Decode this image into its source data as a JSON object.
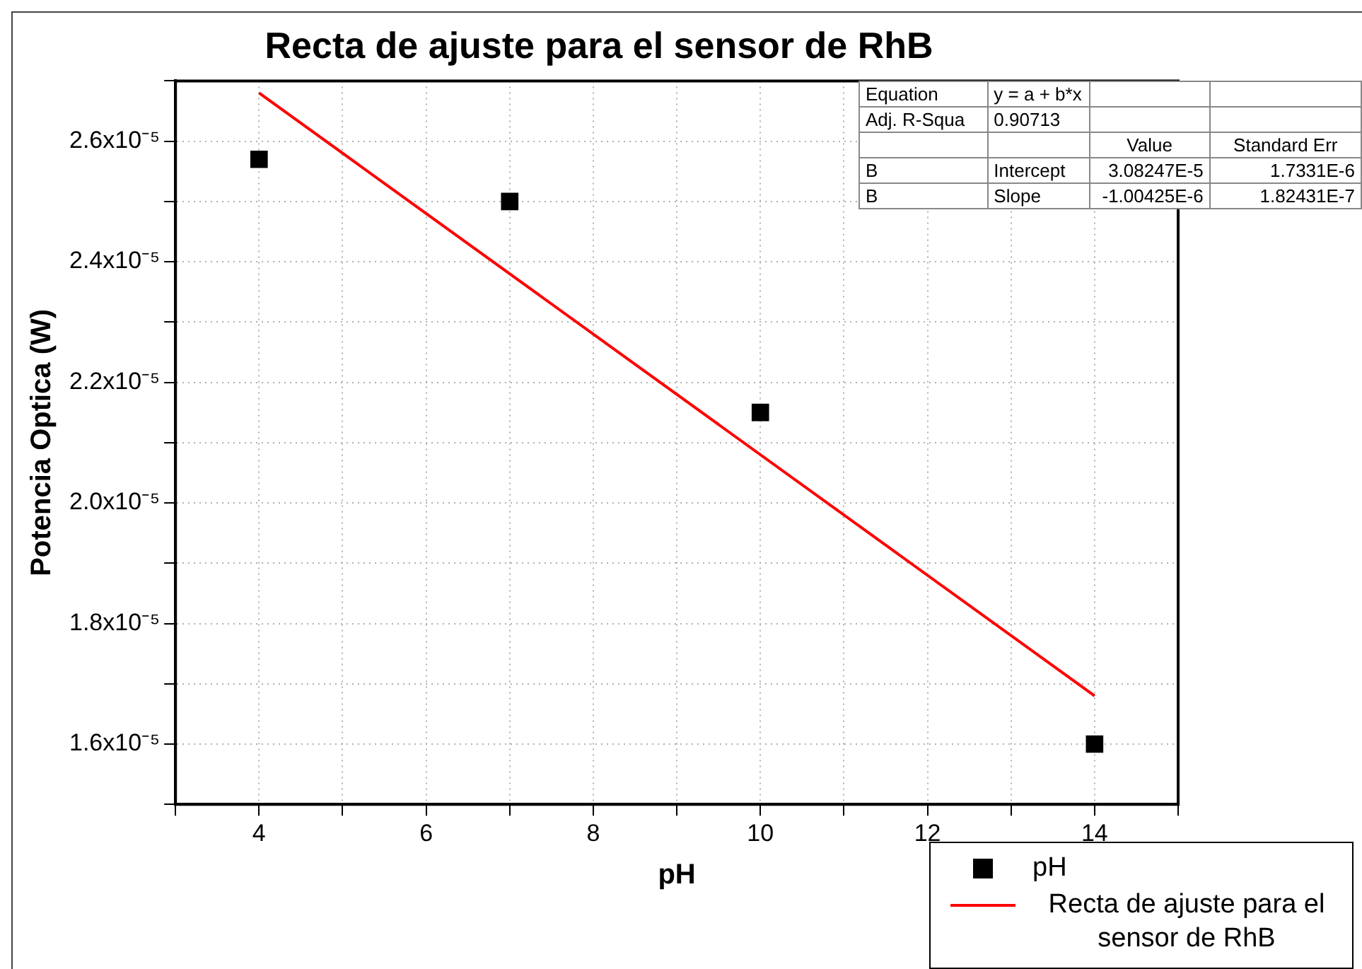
{
  "chart_data": {
    "type": "scatter",
    "title": "Recta de ajuste para el sensor de RhB",
    "xlabel": "pH",
    "ylabel": "Potencia Optica (W)",
    "xlim": [
      3,
      15
    ],
    "xticks": [
      {
        "value": 3,
        "label": null
      },
      4,
      {
        "value": 5,
        "label": null
      },
      6,
      {
        "value": 7,
        "label": null
      },
      8,
      {
        "value": 9,
        "label": null
      },
      10,
      {
        "value": 11,
        "label": null
      },
      12,
      {
        "value": 13,
        "label": null
      },
      14,
      {
        "value": 15,
        "label": null
      }
    ],
    "ylim": [
      1.5e-05,
      2.7e-05
    ],
    "yticks": [
      {
        "value": 1.5e-05,
        "label": null
      },
      {
        "value": 1.6e-05,
        "label": "1.6x10⁻⁵"
      },
      {
        "value": 1.7e-05,
        "label": null
      },
      {
        "value": 1.8e-05,
        "label": "1.8x10⁻⁵"
      },
      {
        "value": 1.9e-05,
        "label": null
      },
      {
        "value": 2e-05,
        "label": "2.0x10⁻⁵"
      },
      {
        "value": 2.1e-05,
        "label": null
      },
      {
        "value": 2.2e-05,
        "label": "2.2x10⁻⁵"
      },
      {
        "value": 2.3e-05,
        "label": null
      },
      {
        "value": 2.4e-05,
        "label": "2.4x10⁻⁵"
      },
      {
        "value": 2.5e-05,
        "label": null
      },
      {
        "value": 2.6e-05,
        "label": "2.6x10⁻⁵"
      },
      {
        "value": 2.7e-05,
        "label": null
      }
    ],
    "grid": true,
    "legend": "bottom right",
    "series": [
      {
        "name": "pH",
        "color": "#000000",
        "marker": "square",
        "x": [
          4,
          7,
          10,
          14
        ],
        "values": [
          2.57e-05,
          2.5e-05,
          2.15e-05,
          1.6e-05
        ]
      },
      {
        "name": "Recta de ajuste para el sensor de RhB",
        "type": "line",
        "color": "#ff0000",
        "marker": "none",
        "x": [
          4,
          14
        ],
        "values": [
          2.68e-05,
          1.68e-05
        ]
      }
    ],
    "annotations": [
      "Equation",
      "y = a + b*x",
      "Adj. R-Squa",
      "0.90713",
      "Value",
      "Standard Err",
      "B",
      "Intercept",
      "3.08247E-5",
      "1.7331E-6",
      "B",
      "Slope",
      "-1.00425E-6",
      "1.82431E-7"
    ]
  }
}
